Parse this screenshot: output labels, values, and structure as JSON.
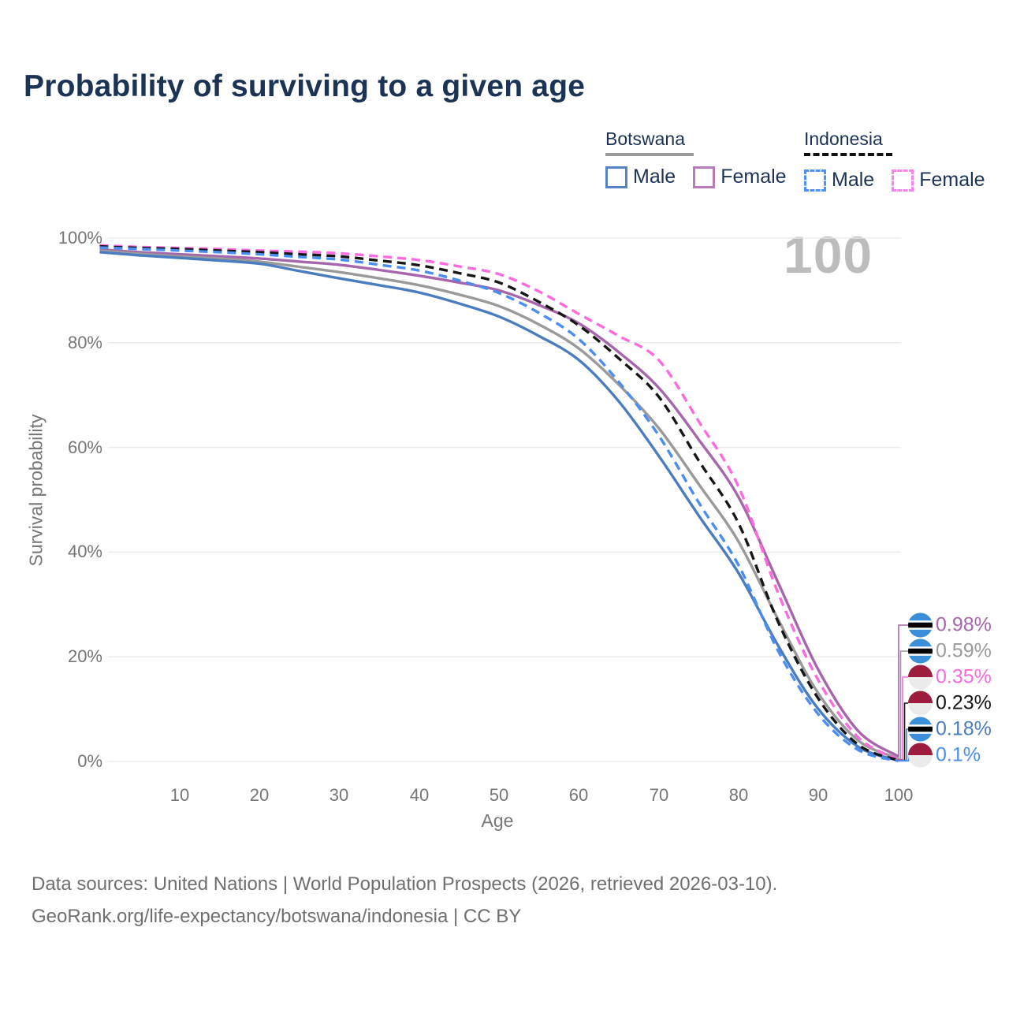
{
  "title": "Probability of surviving to a given age",
  "hover_age": "100",
  "legend": {
    "groups": [
      {
        "country": "Botswana",
        "style": "solid",
        "items": [
          {
            "label": "Male",
            "color": "#5583c5"
          },
          {
            "label": "Female",
            "color": "#b87cba"
          }
        ]
      },
      {
        "country": "Indonesia",
        "style": "dashed",
        "items": [
          {
            "label": "Male",
            "color": "#4d92fc"
          },
          {
            "label": "Female",
            "color": "#ff80ee"
          }
        ]
      }
    ]
  },
  "chart_data": {
    "type": "line",
    "title": "Probability of surviving to a given age",
    "xlabel": "Age",
    "ylabel": "Survival probability",
    "xlim": [
      0,
      100
    ],
    "ylim": [
      0,
      100
    ],
    "grid": "horizontal",
    "x_tick_values": [
      10,
      20,
      30,
      40,
      50,
      60,
      70,
      80,
      90,
      100
    ],
    "y_tick_values": [
      100,
      80,
      60,
      40,
      20,
      0
    ],
    "y_tick_labels": [
      "100%",
      "80%",
      "60%",
      "40%",
      "20%",
      "0%"
    ],
    "x": [
      0,
      5,
      10,
      15,
      20,
      25,
      30,
      35,
      40,
      45,
      50,
      55,
      60,
      65,
      70,
      75,
      80,
      85,
      90,
      95,
      100
    ],
    "series": [
      {
        "name": "Botswana Female",
        "country": "Botswana",
        "sex": "Female",
        "style": "solid",
        "color": "#a765ab",
        "flag": "botswana",
        "values": [
          97.8,
          97.3,
          96.9,
          96.5,
          96.1,
          95.5,
          94.9,
          93.9,
          92.8,
          91.5,
          90.0,
          87.2,
          83.7,
          78.2,
          71.4,
          61.5,
          50.5,
          34.0,
          17.5,
          5.8,
          0.98
        ],
        "end_label": "0.98%"
      },
      {
        "name": "Botswana",
        "country": "Botswana",
        "sex": "Both",
        "style": "solid",
        "color": "#9a9a9a",
        "flag": "botswana",
        "values": [
          97.6,
          97.0,
          96.5,
          96.1,
          95.5,
          94.5,
          93.5,
          92.3,
          91.0,
          89.2,
          87.0,
          83.5,
          78.9,
          72.0,
          63.7,
          53.0,
          42.0,
          27.0,
          13.0,
          4.0,
          0.59
        ],
        "end_label": "0.59%"
      },
      {
        "name": "Indonesia Female",
        "country": "Indonesia",
        "sex": "Female",
        "style": "dashed",
        "color": "#fb6bdf",
        "flag": "indonesia",
        "values": [
          98.6,
          98.3,
          98.1,
          97.9,
          97.6,
          97.4,
          97.1,
          96.5,
          95.8,
          94.6,
          93.1,
          89.8,
          85.5,
          81.3,
          76.7,
          65.0,
          52.5,
          32.0,
          15.5,
          4.6,
          0.35
        ],
        "end_label": "0.35%"
      },
      {
        "name": "Indonesia",
        "country": "Indonesia",
        "sex": "Both",
        "style": "dashed",
        "color": "#161616",
        "flag": "indonesia",
        "values": [
          98.4,
          98.1,
          97.9,
          97.6,
          97.3,
          96.9,
          96.5,
          95.7,
          94.8,
          93.3,
          91.5,
          87.8,
          83.3,
          77.0,
          69.7,
          57.5,
          45.5,
          26.5,
          12.0,
          3.2,
          0.23
        ],
        "end_label": "0.23%"
      },
      {
        "name": "Botswana Male",
        "country": "Botswana",
        "sex": "Male",
        "style": "solid",
        "color": "#4a7dc0",
        "flag": "botswana",
        "values": [
          97.3,
          96.7,
          96.2,
          95.7,
          95.1,
          93.7,
          92.3,
          91.0,
          89.6,
          87.5,
          85.0,
          81.3,
          76.7,
          68.8,
          58.4,
          47.0,
          36.0,
          22.0,
          10.0,
          2.8,
          0.18
        ],
        "end_label": "0.18%"
      },
      {
        "name": "Indonesia Male",
        "country": "Indonesia",
        "sex": "Male",
        "style": "dashed",
        "color": "#4a8ef2",
        "flag": "indonesia",
        "values": [
          98.2,
          97.9,
          97.6,
          97.3,
          96.9,
          96.4,
          95.9,
          94.9,
          93.8,
          91.9,
          89.5,
          85.7,
          80.7,
          72.5,
          62.3,
          49.5,
          37.5,
          21.0,
          9.0,
          2.2,
          0.1
        ],
        "end_label": "0.1%"
      }
    ]
  },
  "footer": {
    "line1": "Data sources: United Nations | World Population Prospects (2026, retrieved 2026-03-10).",
    "line2": "GeoRank.org/life-expectancy/botswana/indonesia | CC BY"
  }
}
